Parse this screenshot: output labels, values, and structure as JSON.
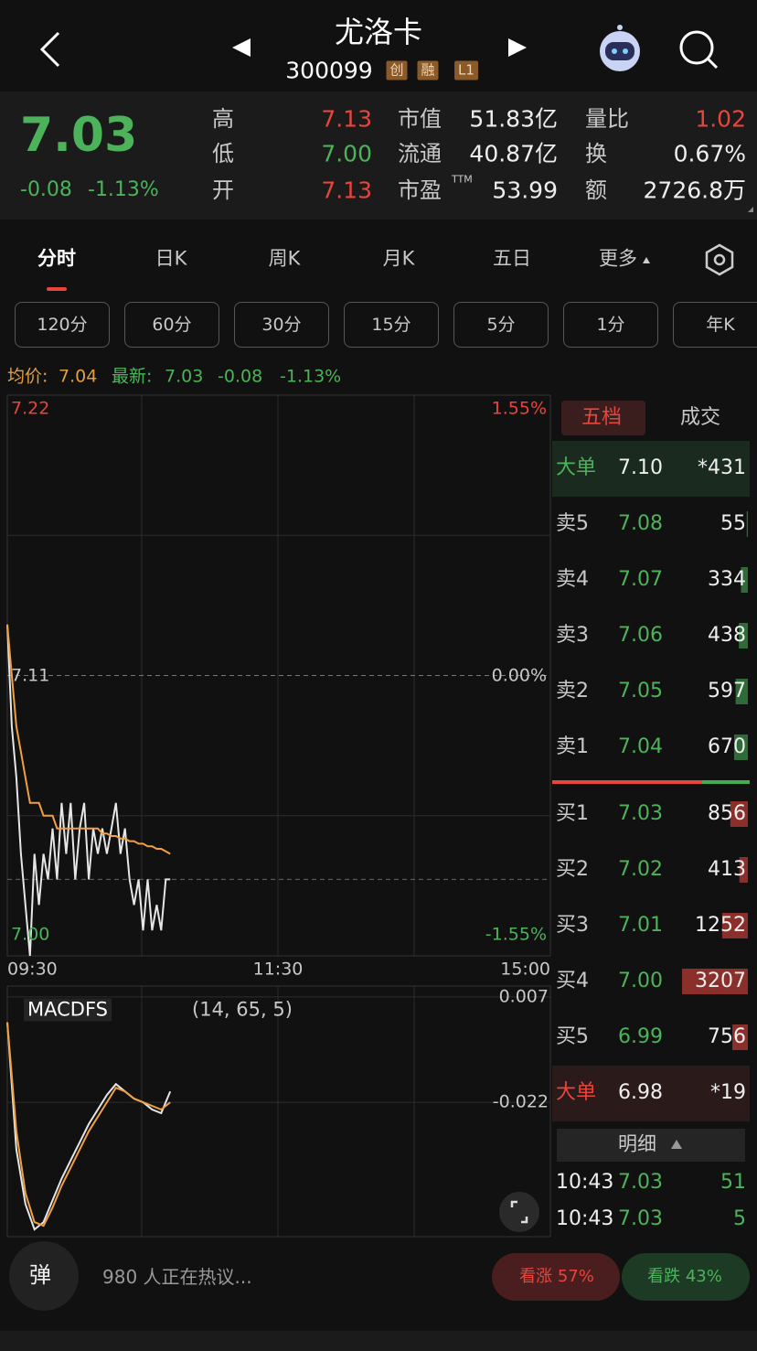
{
  "header": {
    "title": "尤洛卡",
    "code": "300099",
    "badges": [
      "创",
      "融",
      "L1"
    ]
  },
  "quote": {
    "price": "7.03",
    "change": "-0.08",
    "change_pct": "-1.13%",
    "col1": [
      {
        "label": "高",
        "value": "7.13"
      },
      {
        "label": "低",
        "value": "7.00"
      },
      {
        "label": "开",
        "value": "7.13"
      }
    ],
    "col2": [
      {
        "label": "市值",
        "value": "51.83亿"
      },
      {
        "label": "流通",
        "value": "40.87亿"
      },
      {
        "label": "市盈",
        "sup": "TTM",
        "value": "53.99"
      }
    ],
    "col3": [
      {
        "label": "量比",
        "value": "1.02"
      },
      {
        "label": "换",
        "value": "0.67%"
      },
      {
        "label": "额",
        "value": "2726.8万"
      }
    ]
  },
  "tabs": [
    "分时",
    "日K",
    "周K",
    "月K",
    "五日",
    "更多"
  ],
  "intervals": [
    "120分",
    "60分",
    "30分",
    "15分",
    "5分",
    "1分",
    "年K"
  ],
  "summary": {
    "avg_label": "均价:",
    "avg": "7.04",
    "latest_label": "最新:",
    "latest": "7.03",
    "change": "-0.08",
    "change_pct": "-1.13%"
  },
  "chart_data": [
    {
      "type": "line",
      "ylim": [
        7.0,
        7.22
      ],
      "yticks": [
        7.22,
        7.11,
        {
          "value": 7,
          "label": "7.00"
        }
      ],
      "y2lim": [
        -1.55,
        1.55
      ],
      "y2ticks": [
        {
          "value": 1.55,
          "label": "1.55%"
        },
        {
          "value": 0,
          "label": "0.00%"
        },
        {
          "value": -1.55,
          "label": "-1.55%"
        }
      ],
      "x_labels": [
        "09:30",
        "11:30",
        "15:00"
      ],
      "series": [
        {
          "color": "#e6e6e6",
          "values": [
            7.13,
            7.09,
            7.07,
            7.04,
            7.02,
            7.0,
            7.04,
            7.02,
            7.04,
            7.03,
            7.05,
            7.03,
            7.06,
            7.04,
            7.06,
            7.03,
            7.05,
            7.06,
            7.03,
            7.05,
            7.04,
            7.05,
            7.04,
            7.05,
            7.06,
            7.04,
            7.05,
            7.03,
            7.02,
            7.03,
            7.01,
            7.03,
            7.01,
            7.02,
            7.01,
            7.03,
            7.03
          ]
        },
        {
          "color": "#f0a040",
          "values": [
            7.13,
            7.11,
            7.09,
            7.08,
            7.07,
            7.06,
            7.06,
            7.06,
            7.055,
            7.055,
            7.055,
            7.05,
            7.05,
            7.05,
            7.05,
            7.05,
            7.05,
            7.05,
            7.05,
            7.05,
            7.05,
            7.048,
            7.048,
            7.047,
            7.047,
            7.046,
            7.046,
            7.045,
            7.045,
            7.044,
            7.044,
            7.043,
            7.043,
            7.042,
            7.042,
            7.041,
            7.04
          ]
        }
      ]
    },
    {
      "type": "line",
      "title": "MACDFS",
      "params": "(14, 65, 5)",
      "ylim": [
        -0.059,
        0.01
      ],
      "yticks": [
        0.007,
        -0.022
      ],
      "series": [
        {
          "color": "#e6e6e6",
          "values": [
            0.0,
            -0.035,
            -0.05,
            -0.057,
            -0.055,
            -0.049,
            -0.043,
            -0.038,
            -0.033,
            -0.028,
            -0.024,
            -0.02,
            -0.017,
            -0.019,
            -0.021,
            -0.022,
            -0.024,
            -0.025,
            -0.019
          ]
        },
        {
          "color": "#f0a040",
          "values": [
            0.0,
            -0.03,
            -0.047,
            -0.055,
            -0.056,
            -0.051,
            -0.045,
            -0.04,
            -0.035,
            -0.03,
            -0.026,
            -0.022,
            -0.018,
            -0.019,
            -0.021,
            -0.022,
            -0.023,
            -0.024,
            -0.022
          ]
        }
      ]
    }
  ],
  "order_book": {
    "tabs": [
      "五档",
      "成交"
    ],
    "big_sell": {
      "label": "大单",
      "price": "7.10",
      "volume": "*431"
    },
    "asks": [
      {
        "label": "卖5",
        "price": "7.08",
        "volume": 55
      },
      {
        "label": "卖4",
        "price": "7.07",
        "volume": 334
      },
      {
        "label": "卖3",
        "price": "7.06",
        "volume": 438
      },
      {
        "label": "卖2",
        "price": "7.05",
        "volume": 597
      },
      {
        "label": "卖1",
        "price": "7.04",
        "volume": 670
      }
    ],
    "bids": [
      {
        "label": "买1",
        "price": "7.03",
        "volume": 856
      },
      {
        "label": "买2",
        "price": "7.02",
        "volume": 413
      },
      {
        "label": "买3",
        "price": "7.01",
        "volume": 1252
      },
      {
        "label": "买4",
        "price": "7.00",
        "volume": 3207
      },
      {
        "label": "买5",
        "price": "6.99",
        "volume": 756
      }
    ],
    "big_buy": {
      "label": "大单",
      "price": "6.98",
      "volume": "*19"
    },
    "detail_title": "明细",
    "trades": [
      {
        "time": "10:43",
        "price": "7.03",
        "volume": 51
      },
      {
        "time": "10:43",
        "price": "7.03",
        "volume": 5
      }
    ]
  },
  "footer": {
    "danmu": "弹",
    "discussion": "980 人正在热议...",
    "bullish": "看涨 57%",
    "bearish": "看跌 43%"
  }
}
